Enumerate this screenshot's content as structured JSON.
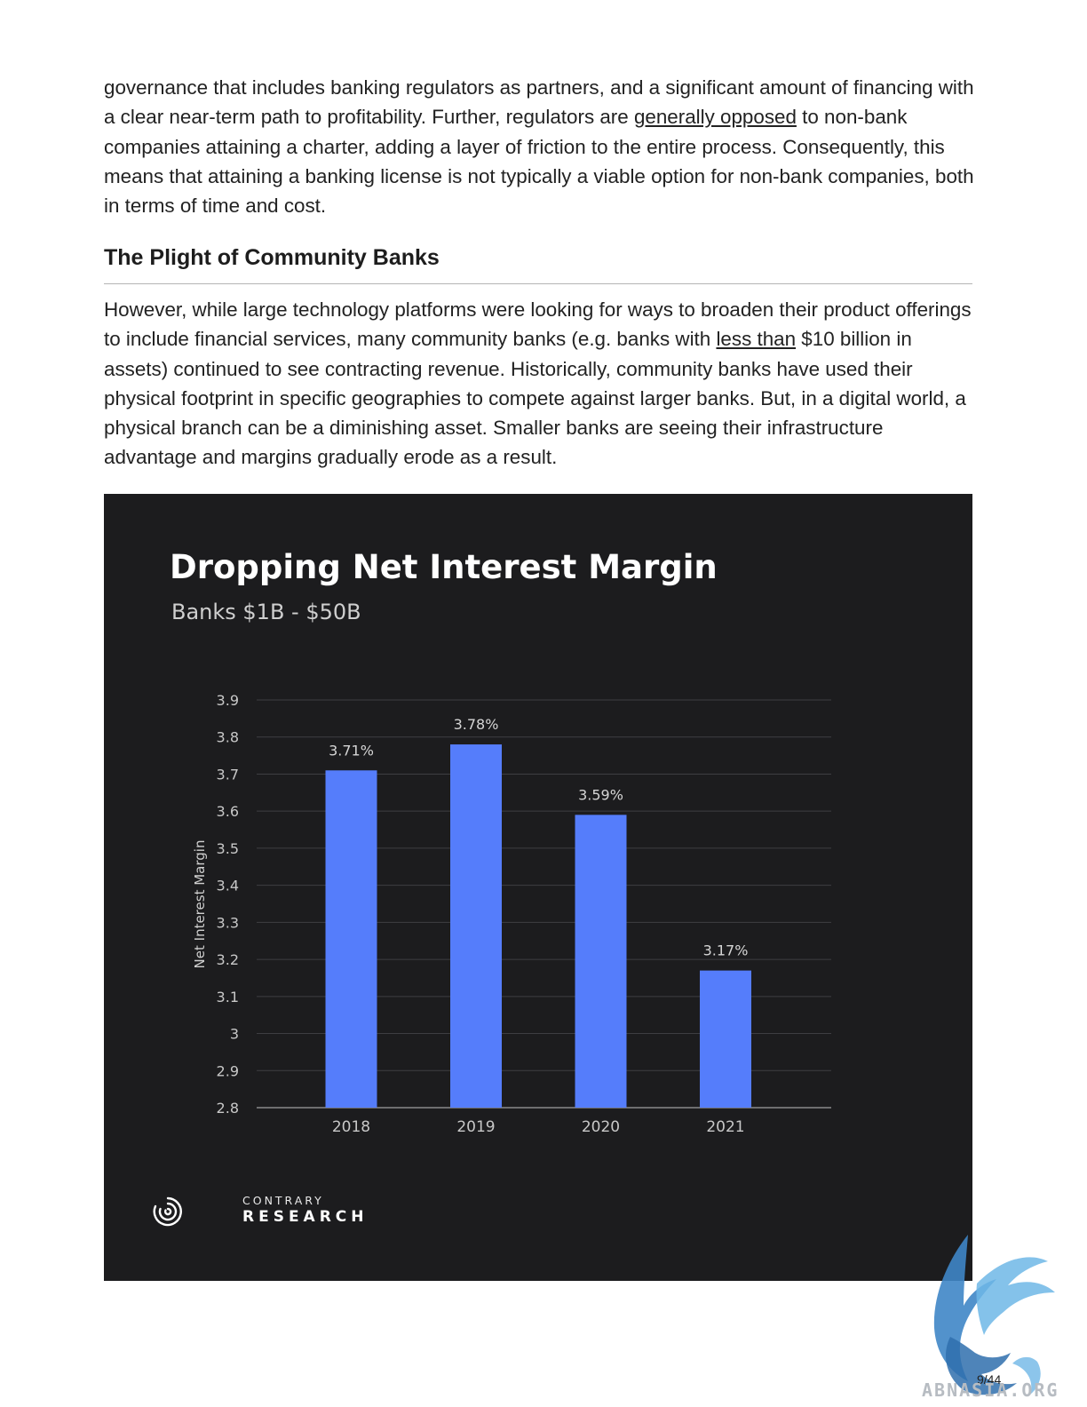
{
  "paragraph1": {
    "before_link": "governance that includes banking regulators as partners, and a significant amount of financing with a clear near-term path to profitability. Further, regulators are ",
    "link": "generally opposed",
    "after_link": " to non-bank companies attaining a charter, adding a layer of friction to the entire process. Consequently, this means that attaining a banking license is not typically a viable option for non-bank companies, both in terms of time and cost."
  },
  "heading": "The Plight of Community Banks",
  "paragraph2": {
    "before_link": "However, while large technology platforms were looking for ways to broaden their product offerings to include financial services, many community banks (e.g. banks with ",
    "link": "less than",
    "after_link": " $10 billion in assets) continued to see contracting revenue. Historically, community banks have used their physical footprint in specific geographies to compete against larger banks. But, in a digital world, a physical branch can be a diminishing asset. Smaller banks are seeing their infrastructure advantage and margins gradually erode as a result."
  },
  "chart_data": {
    "type": "bar",
    "title": "Dropping Net Interest Margin",
    "subtitle": "Banks $1B - $50B",
    "xlabel": "",
    "ylabel": "Net Interest Margin",
    "categories": [
      "2018",
      "2019",
      "2020",
      "2021"
    ],
    "values": [
      3.71,
      3.78,
      3.59,
      3.17
    ],
    "data_labels": [
      "3.71%",
      "3.78%",
      "3.59%",
      "3.17%"
    ],
    "ylim": [
      2.8,
      3.9
    ],
    "y_ticks": [
      "3.9",
      "3.8",
      "3.7",
      "3.6",
      "3.5",
      "3.4",
      "3.3",
      "3.2",
      "3.1",
      "3",
      "2.9",
      "2.8"
    ],
    "grid": true,
    "bar_color": "#557dfb",
    "background_color": "#1c1c1e"
  },
  "logo": {
    "line1": "CONTRARY",
    "line2": "RESEARCH"
  },
  "page_number": "9/44",
  "watermark": "ABNASIA.ORG"
}
